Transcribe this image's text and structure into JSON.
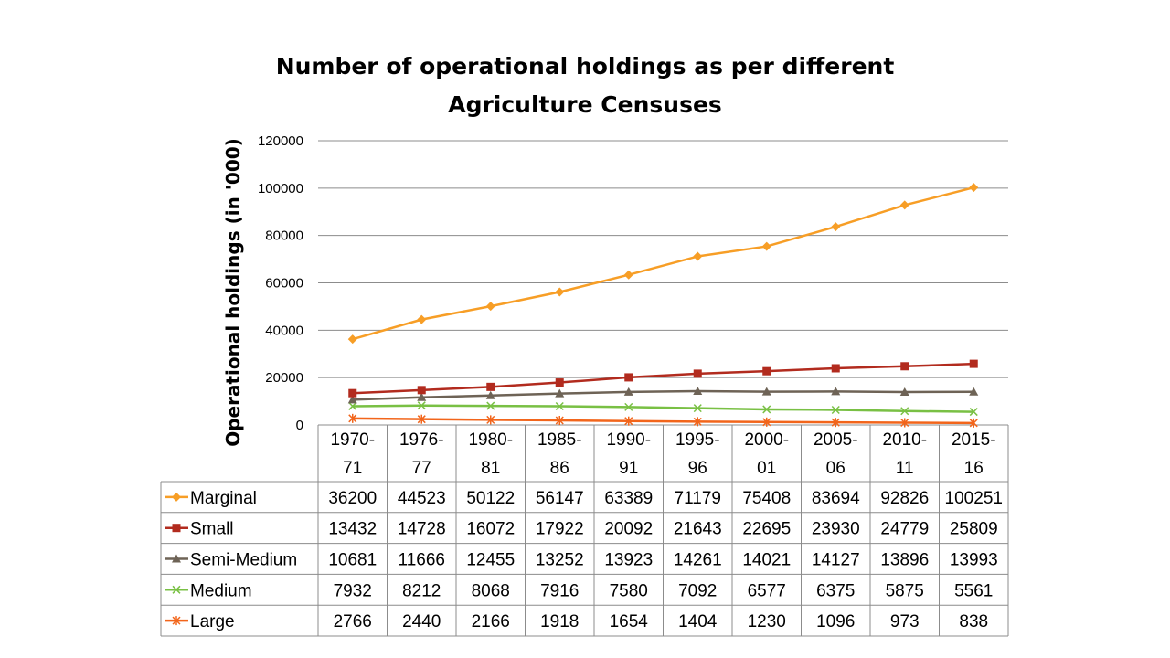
{
  "chart_data": {
    "type": "line",
    "title": "Number of operational holdings as per different Agriculture Censuses",
    "title_lines": [
      "Number of operational holdings as per different",
      "Agriculture Censuses"
    ],
    "xlabel": "",
    "ylabel": "Operational holdings (in '000)",
    "ylim": [
      0,
      120000
    ],
    "yticks": [
      "0",
      "20000",
      "40000",
      "60000",
      "80000",
      "100000",
      "120000"
    ],
    "grid": true,
    "legend": "data-table",
    "categories": [
      "1970-71",
      "1976-77",
      "1980-81",
      "1985-86",
      "1990-91",
      "1995-96",
      "2000-01",
      "2005-06",
      "2010-11",
      "2015-16"
    ],
    "category_lines": [
      [
        "1970-",
        "71"
      ],
      [
        "1976-",
        "77"
      ],
      [
        "1980-",
        "81"
      ],
      [
        "1985-",
        "86"
      ],
      [
        "1990-",
        "91"
      ],
      [
        "1995-",
        "96"
      ],
      [
        "2000-",
        "01"
      ],
      [
        "2005-",
        "06"
      ],
      [
        "2010-",
        "11"
      ],
      [
        "2015-",
        "16"
      ]
    ],
    "series": [
      {
        "name": "Marginal",
        "color": "#F79E26",
        "marker": "diamond",
        "values": [
          36200,
          44523,
          50122,
          56147,
          63389,
          71179,
          75408,
          83694,
          92826,
          100251
        ]
      },
      {
        "name": "Small",
        "color": "#B22B1E",
        "marker": "square",
        "values": [
          13432,
          14728,
          16072,
          17922,
          20092,
          21643,
          22695,
          23930,
          24779,
          25809
        ]
      },
      {
        "name": "Semi-Medium",
        "color": "#6E6356",
        "marker": "triangle",
        "values": [
          10681,
          11666,
          12455,
          13252,
          13923,
          14261,
          14021,
          14127,
          13896,
          13993
        ]
      },
      {
        "name": "Medium",
        "color": "#79C044",
        "marker": "x",
        "values": [
          7932,
          8212,
          8068,
          7916,
          7580,
          7092,
          6577,
          6375,
          5875,
          5561
        ]
      },
      {
        "name": "Large",
        "color": "#F2651B",
        "marker": "star",
        "values": [
          2766,
          2440,
          2166,
          1918,
          1654,
          1404,
          1230,
          1096,
          973,
          838
        ]
      }
    ]
  }
}
